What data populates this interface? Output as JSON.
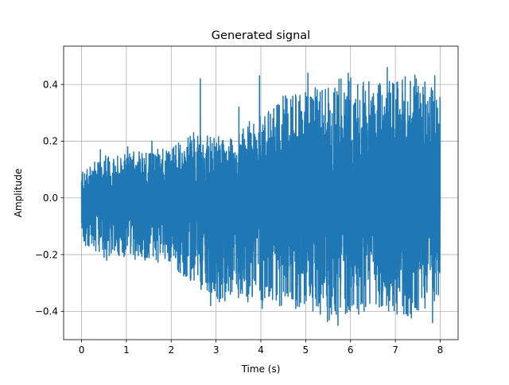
{
  "chart_data": {
    "type": "line",
    "title": "Generated signal",
    "xlabel": "Time (s)",
    "ylabel": "Amplitude",
    "xlim": [
      -0.4,
      8.4
    ],
    "ylim": [
      -0.5,
      0.535
    ],
    "xticks": [
      0,
      1,
      2,
      3,
      4,
      5,
      6,
      7,
      8
    ],
    "xtick_labels": [
      "0",
      "1",
      "2",
      "3",
      "4",
      "5",
      "6",
      "7",
      "8"
    ],
    "yticks": [
      -0.4,
      -0.2,
      0.0,
      0.2,
      0.4
    ],
    "ytick_labels": [
      "−0.4",
      "−0.2",
      "0.0",
      "0.2",
      "0.4"
    ],
    "grid": true,
    "series": [
      {
        "color": "#1f77b4",
        "x_start": 0,
        "x_end": 8,
        "envelope_max": [
          [
            0,
            0.1
          ],
          [
            0.5,
            0.15
          ],
          [
            1,
            0.16
          ],
          [
            1.5,
            0.17
          ],
          [
            2,
            0.18
          ],
          [
            2.5,
            0.24
          ],
          [
            3,
            0.22
          ],
          [
            3.5,
            0.24
          ],
          [
            4,
            0.3
          ],
          [
            4.5,
            0.36
          ],
          [
            5,
            0.38
          ],
          [
            5.5,
            0.42
          ],
          [
            6,
            0.43
          ],
          [
            6.5,
            0.4
          ],
          [
            7,
            0.42
          ],
          [
            7.5,
            0.44
          ],
          [
            8,
            0.36
          ]
        ],
        "envelope_min": [
          [
            0,
            -0.16
          ],
          [
            0.5,
            -0.21
          ],
          [
            1,
            -0.22
          ],
          [
            1.5,
            -0.22
          ],
          [
            2,
            -0.24
          ],
          [
            2.5,
            -0.32
          ],
          [
            3,
            -0.37
          ],
          [
            3.5,
            -0.36
          ],
          [
            4,
            -0.38
          ],
          [
            4.5,
            -0.38
          ],
          [
            5,
            -0.4
          ],
          [
            5.5,
            -0.44
          ],
          [
            6,
            -0.44
          ],
          [
            6.5,
            -0.41
          ],
          [
            7,
            -0.41
          ],
          [
            7.5,
            -0.43
          ],
          [
            8,
            -0.34
          ]
        ],
        "peaks": [
          [
            0.42,
            0.17
          ],
          [
            1.03,
            0.18
          ],
          [
            1.57,
            0.2
          ],
          [
            2.65,
            0.42
          ],
          [
            3.51,
            0.32
          ],
          [
            3.97,
            0.43
          ],
          [
            4.55,
            0.36
          ],
          [
            5.05,
            0.44
          ],
          [
            5.72,
            0.49
          ],
          [
            5.95,
            0.44
          ],
          [
            6.41,
            0.41
          ],
          [
            6.82,
            0.46
          ],
          [
            7.16,
            0.37
          ],
          [
            7.88,
            0.43
          ]
        ],
        "troughs": [
          [
            0.08,
            -0.15
          ],
          [
            0.56,
            -0.22
          ],
          [
            1.42,
            -0.22
          ],
          [
            2.51,
            -0.29
          ],
          [
            2.88,
            -0.38
          ],
          [
            3.32,
            -0.34
          ],
          [
            4.03,
            -0.39
          ],
          [
            4.42,
            -0.38
          ],
          [
            5.24,
            -0.38
          ],
          [
            5.72,
            -0.45
          ],
          [
            6.15,
            -0.39
          ],
          [
            6.65,
            -0.34
          ],
          [
            7.19,
            -0.41
          ],
          [
            7.83,
            -0.44
          ]
        ]
      }
    ]
  }
}
